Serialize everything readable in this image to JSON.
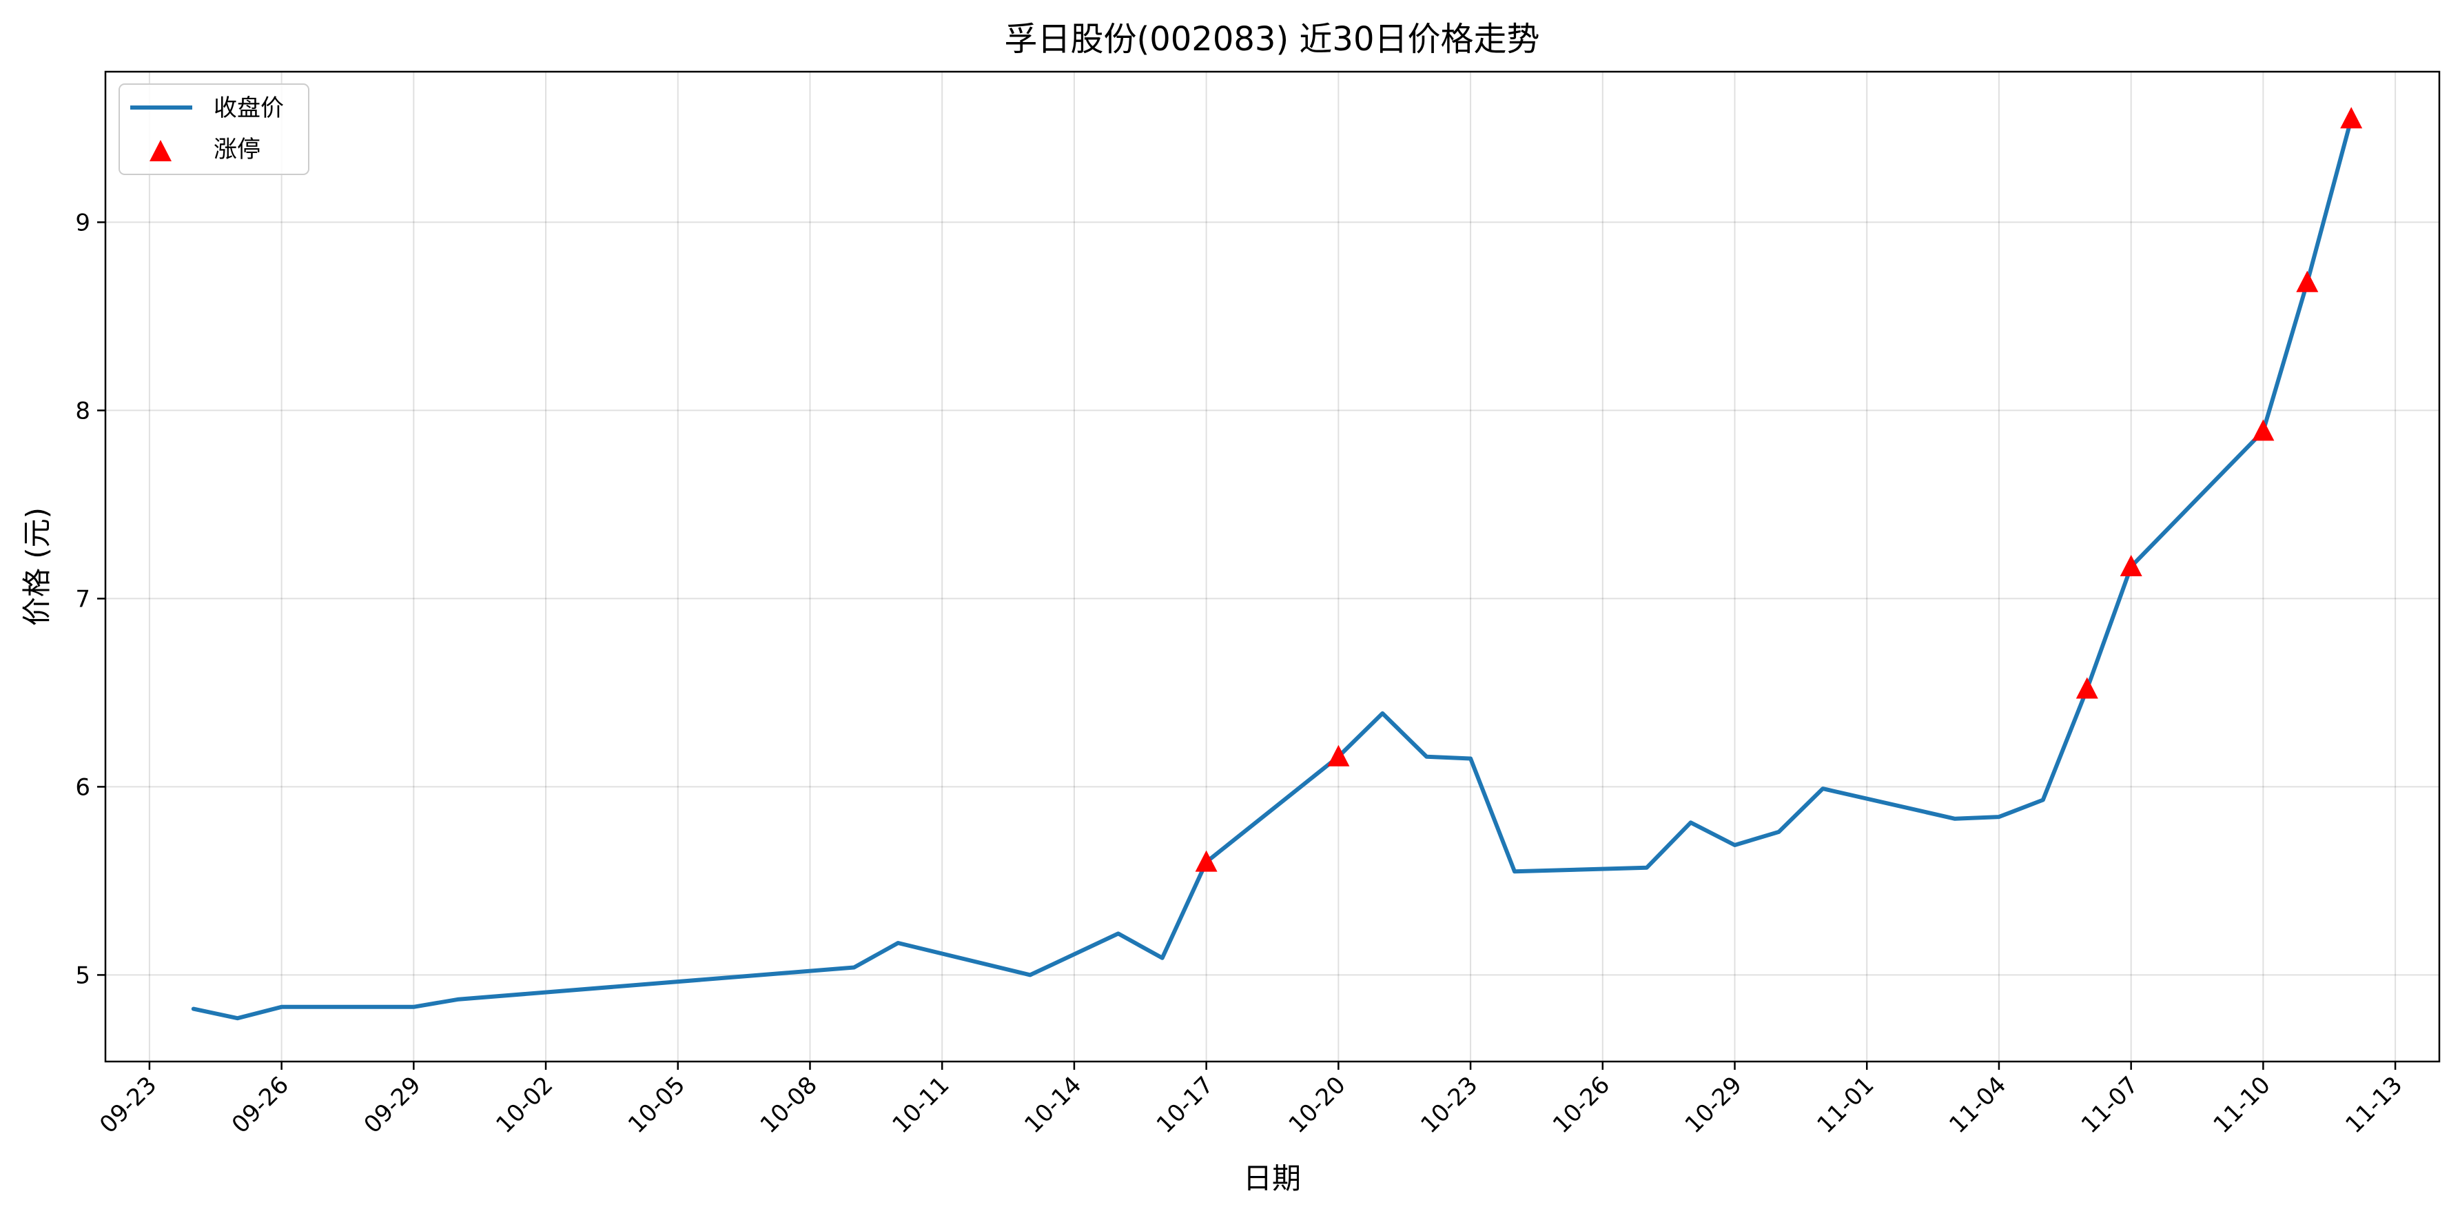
{
  "chart_data": {
    "type": "line",
    "title": "孚日股份(002083) 近30日价格走势",
    "xlabel": "日期",
    "ylabel": "价格 (元)",
    "xlim": [
      "2025-09-22",
      "2025-11-14"
    ],
    "ylim": [
      4.54,
      9.8
    ],
    "x_ticks": [
      "09-23",
      "09-26",
      "09-29",
      "10-02",
      "10-05",
      "10-08",
      "10-11",
      "10-14",
      "10-17",
      "10-20",
      "10-23",
      "10-26",
      "10-29",
      "11-01",
      "11-04",
      "11-07",
      "11-10",
      "11-13"
    ],
    "y_ticks": [
      5,
      6,
      7,
      8,
      9
    ],
    "grid": true,
    "legend_position": "top-left",
    "colors": {
      "line": "#1f77b4",
      "limit_up": "#ff0000"
    },
    "series": [
      {
        "name": "收盘价",
        "kind": "line",
        "x": [
          "2025-09-24",
          "2025-09-25",
          "2025-09-26",
          "2025-09-29",
          "2025-09-30",
          "2025-10-09",
          "2025-10-10",
          "2025-10-13",
          "2025-10-15",
          "2025-10-16",
          "2025-10-17",
          "2025-10-20",
          "2025-10-21",
          "2025-10-22",
          "2025-10-23",
          "2025-10-24",
          "2025-10-27",
          "2025-10-28",
          "2025-10-29",
          "2025-10-30",
          "2025-10-31",
          "2025-11-03",
          "2025-11-04",
          "2025-11-05",
          "2025-11-06",
          "2025-11-07",
          "2025-11-10",
          "2025-11-11",
          "2025-11-12"
        ],
        "y": [
          4.82,
          4.77,
          4.83,
          4.83,
          4.87,
          5.04,
          5.17,
          5.0,
          5.22,
          5.09,
          5.6,
          6.16,
          6.39,
          6.16,
          6.15,
          5.55,
          5.57,
          5.81,
          5.69,
          5.76,
          5.99,
          5.83,
          5.84,
          5.93,
          6.52,
          7.17,
          7.89,
          8.68,
          9.55
        ]
      },
      {
        "name": "涨停",
        "kind": "scatter",
        "marker": "triangle",
        "x": [
          "2025-10-17",
          "2025-10-20",
          "2025-11-06",
          "2025-11-07",
          "2025-11-10",
          "2025-11-11",
          "2025-11-12"
        ],
        "y": [
          5.6,
          6.16,
          6.52,
          7.17,
          7.89,
          8.68,
          9.55
        ]
      }
    ]
  }
}
